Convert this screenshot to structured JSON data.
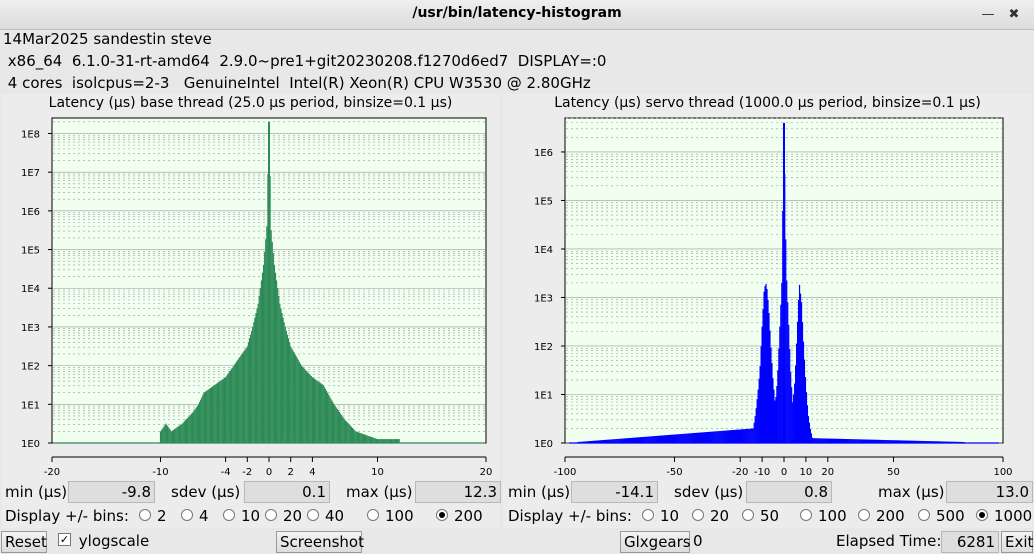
{
  "window": {
    "title": "/usr/bin/latency-histogram",
    "minimize_glyph": "—",
    "close_glyph": "✖"
  },
  "info": {
    "line1": "14Mar2025 sandestin steve",
    "line2": " x86_64  6.1.0-31-rt-amd64  2.9.0~pre1+git20230208.f1270d6ed7  DISPLAY=:0",
    "line3": " 4 cores  isolcpus=2-3   GenuineIntel  Intel(R) Xeon(R) CPU W3530 @ 2.80GHz"
  },
  "base": {
    "title": "Latency (µs) base thread (25.0 µs period, binsize=0.1 µs)",
    "min_label": "min (µs)",
    "min": "-9.8",
    "sdev_label": "sdev (µs)",
    "sdev": "0.1",
    "max_label": "max (µs)",
    "max": "12.3",
    "bins_label": "Display +/- bins:",
    "bins": [
      "2",
      "4",
      "10",
      "20",
      "40",
      "100",
      "200"
    ],
    "bins_selected": "200"
  },
  "servo": {
    "title": "Latency (µs) servo thread (1000.0 µs period, binsize=0.1 µs)",
    "min_label": "min (µs)",
    "min": "-14.1",
    "sdev_label": "sdev (µs)",
    "sdev": "0.8",
    "max_label": "max (µs)",
    "max": "13.0",
    "bins_label": "Display +/- bins:",
    "bins": [
      "10",
      "20",
      "50",
      "100",
      "200",
      "500",
      "1000"
    ],
    "bins_selected": "1000"
  },
  "bottom": {
    "reset": "Reset",
    "ylogscale": "ylogscale",
    "ylogscale_checked": true,
    "checkmark": "✓",
    "screenshot": "Screenshot",
    "glxgears": "Glxgears",
    "glxgears_count": "0",
    "elapsed_label": "Elapsed Time:",
    "elapsed": "6281",
    "exit": "Exit"
  },
  "chart_data": [
    {
      "type": "bar",
      "title": "Latency (µs) base thread (25.0 µs period, binsize=0.1 µs)",
      "xlabel": "",
      "ylabel": "",
      "x_ticks": [
        -20,
        -10,
        -4,
        -2,
        0,
        2,
        4,
        10,
        20
      ],
      "y_ticks": [
        "1E0",
        "1E1",
        "1E2",
        "1E3",
        "1E4",
        "1E5",
        "1E6",
        "1E7",
        "1E8"
      ],
      "xlim": [
        -20,
        20
      ],
      "ylog_range": [
        0,
        8.4
      ],
      "ylog": true,
      "grid": true,
      "color": "#2e8b57",
      "points": [
        [
          -10,
          0.3
        ],
        [
          -9.5,
          0.5
        ],
        [
          -9,
          0.3
        ],
        [
          -8,
          0.5
        ],
        [
          -7,
          0.8
        ],
        [
          -6.5,
          1.0
        ],
        [
          -6,
          1.3
        ],
        [
          -5,
          1.5
        ],
        [
          -4,
          1.7
        ],
        [
          -3,
          2.1
        ],
        [
          -2,
          2.5
        ],
        [
          -1.5,
          3.0
        ],
        [
          -1,
          3.6
        ],
        [
          -0.5,
          4.6
        ],
        [
          -0.2,
          5.6
        ],
        [
          0,
          8.3
        ],
        [
          0.2,
          5.5
        ],
        [
          0.5,
          4.6
        ],
        [
          1,
          3.6
        ],
        [
          1.5,
          3.0
        ],
        [
          2,
          2.5
        ],
        [
          3,
          2.0
        ],
        [
          4,
          1.7
        ],
        [
          5,
          1.5
        ],
        [
          6,
          1.0
        ],
        [
          7,
          0.6
        ],
        [
          8,
          0.3
        ],
        [
          9,
          0.2
        ],
        [
          10,
          0.1
        ],
        [
          12,
          0.1
        ]
      ]
    },
    {
      "type": "bar",
      "title": "Latency (µs) servo thread (1000.0 µs period, binsize=0.1 µs)",
      "xlabel": "",
      "ylabel": "",
      "x_ticks": [
        -100,
        -50,
        -20,
        -10,
        0,
        10,
        20,
        50,
        100
      ],
      "y_ticks": [
        "1E0",
        "1E1",
        "1E2",
        "1E3",
        "1E4",
        "1E5",
        "1E6"
      ],
      "xlim": [
        -100,
        100
      ],
      "ylog_range": [
        0,
        6.7
      ],
      "ylog": true,
      "grid": true,
      "color": "#0000ff",
      "points": [
        [
          -100,
          0.0
        ],
        [
          -14,
          0.3
        ],
        [
          -13,
          0.6
        ],
        [
          -12,
          1.0
        ],
        [
          -11,
          1.5
        ],
        [
          -10,
          2.4
        ],
        [
          -9,
          3.2
        ],
        [
          -8,
          3.3
        ],
        [
          -7,
          2.8
        ],
        [
          -6,
          2.0
        ],
        [
          -5,
          1.3
        ],
        [
          -4,
          0.8
        ],
        [
          -3,
          1.3
        ],
        [
          -2,
          2.3
        ],
        [
          -1,
          3.3
        ],
        [
          0,
          6.6
        ],
        [
          1,
          3.6
        ],
        [
          2,
          2.6
        ],
        [
          3,
          1.5
        ],
        [
          4,
          0.8
        ],
        [
          5,
          1.3
        ],
        [
          6,
          2.3
        ],
        [
          7,
          3.3
        ],
        [
          8,
          2.9
        ],
        [
          9,
          2.0
        ],
        [
          10,
          1.2
        ],
        [
          11,
          0.6
        ],
        [
          12,
          0.3
        ],
        [
          13,
          0.1
        ],
        [
          100,
          0.0
        ]
      ]
    }
  ]
}
